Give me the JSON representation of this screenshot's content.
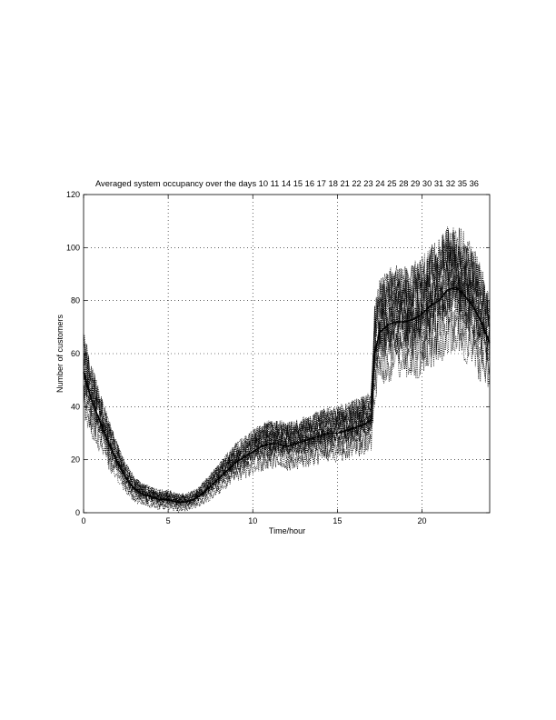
{
  "chart_data": {
    "type": "line",
    "title": "Averaged system occupancy over the days 10 11 14 15 16 17 18 21 22 23 24 25 28 29 30 31 32 35 36",
    "xlabel": "Time/hour",
    "ylabel": "Number of customers",
    "xlim": [
      0,
      24
    ],
    "ylim": [
      0,
      120
    ],
    "xticks": [
      0,
      5,
      10,
      15,
      20
    ],
    "yticks": [
      0,
      20,
      40,
      60,
      80,
      100,
      120
    ],
    "grid": true,
    "series": [
      {
        "style": "solid-mean",
        "x": [
          0,
          0.5,
          1,
          1.5,
          2,
          2.5,
          3,
          3.5,
          4,
          4.5,
          5,
          5.5,
          6,
          6.5,
          7,
          7.5,
          8,
          8.5,
          9,
          9.5,
          10,
          10.5,
          11,
          11.5,
          12,
          12.5,
          13,
          13.5,
          14,
          14.5,
          15,
          15.5,
          16,
          16.5,
          17,
          17.2,
          17.5,
          18,
          18.5,
          19,
          19.5,
          20,
          20.5,
          21,
          21.5,
          22,
          22.5,
          23,
          23.5,
          24
        ],
        "y": [
          53,
          42,
          34,
          26,
          19,
          13,
          9,
          7,
          6,
          5,
          5,
          4,
          4,
          5,
          7,
          10,
          13,
          16,
          19,
          21,
          23,
          25,
          26,
          26,
          25,
          26,
          27,
          28,
          29,
          30,
          30,
          31,
          32,
          33,
          35,
          60,
          68,
          71,
          72,
          72,
          73,
          75,
          78,
          80,
          84,
          85,
          82,
          78,
          72,
          64
        ]
      }
    ]
  }
}
